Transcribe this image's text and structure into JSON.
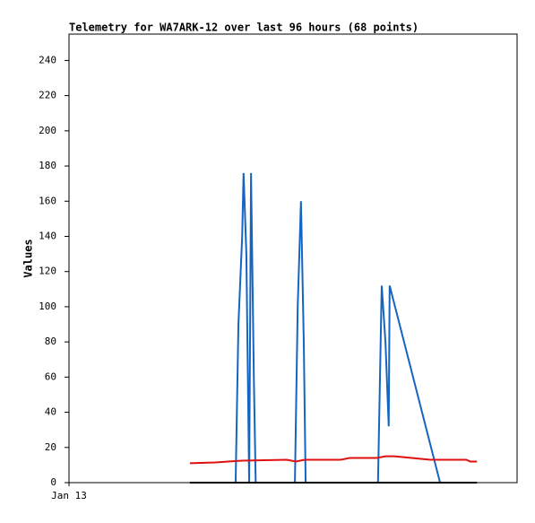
{
  "chart_data": {
    "type": "line",
    "title": "Telemetry for WA7ARK-12 over last 96 hours (68 points)",
    "y_label": "Values",
    "xlim": [
      0,
      96
    ],
    "xticks": [
      {
        "value": 0,
        "label": "Jan 13"
      }
    ],
    "ylim": [
      0,
      255
    ],
    "yticks": [
      0,
      20,
      40,
      60,
      80,
      100,
      120,
      140,
      160,
      180,
      200,
      220,
      240
    ],
    "series": [
      {
        "color": "#1565c0",
        "x": [
          35.7,
          36.3,
          37.1,
          37.4,
          38.0,
          38.6,
          39.0,
          39.6,
          40.0,
          48.4,
          49.0,
          49.7,
          50.3,
          50.7,
          66.2,
          67.0,
          67.8,
          68.5,
          68.7,
          79.5
        ],
        "values": [
          0,
          90,
          140,
          176,
          130,
          0,
          176,
          60,
          0,
          0,
          100,
          160,
          80,
          0,
          0,
          112,
          80,
          32,
          112,
          0
        ]
      },
      {
        "color": "#e01010",
        "x": [
          25.9,
          31.3,
          37.1,
          46.7,
          48.6,
          50.5,
          58.2,
          60.1,
          65.9,
          67.8,
          69.7,
          77.4,
          85.1,
          86.0,
          87.4
        ],
        "values": [
          11,
          11.5,
          12.5,
          13,
          12,
          13,
          13,
          14,
          14,
          15,
          15,
          13,
          13,
          12,
          12
        ]
      },
      {
        "color": "#000000",
        "x": [
          25.9,
          87.4
        ],
        "values": [
          0,
          0
        ]
      }
    ]
  }
}
